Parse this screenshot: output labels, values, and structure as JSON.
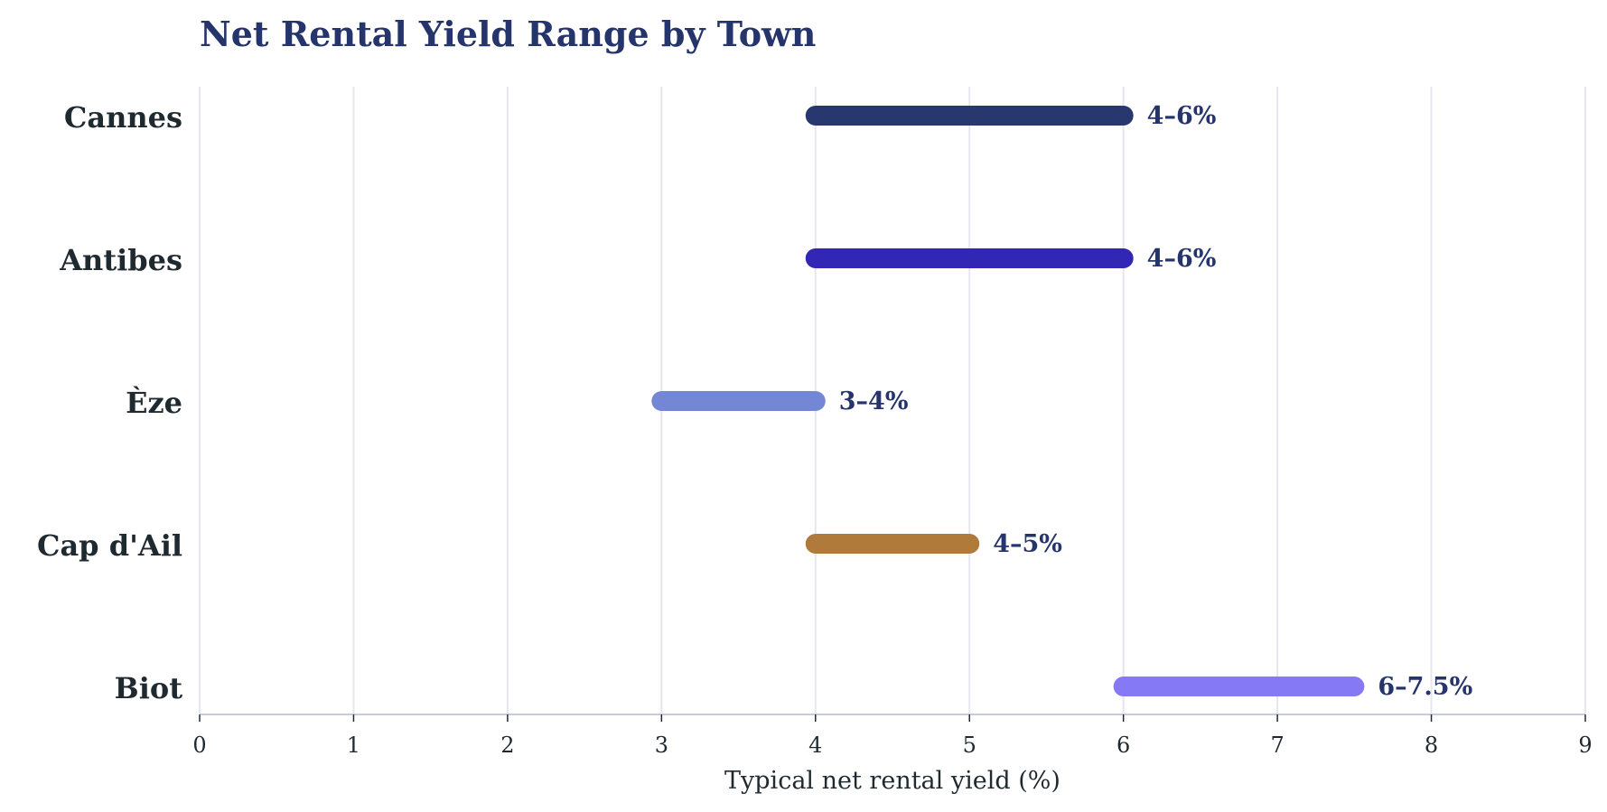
{
  "chart_data": {
    "type": "range-bar",
    "title": "Net Rental Yield Range by Town",
    "xlabel": "Typical net rental yield (%)",
    "ylabel": "",
    "xlim": [
      0,
      9
    ],
    "xticks": [
      0,
      1,
      2,
      3,
      4,
      5,
      6,
      7,
      8,
      9
    ],
    "grid": "vertical",
    "legend": "none",
    "series": [
      {
        "category": "Cannes",
        "min": 4,
        "max": 6,
        "label": "4–6%",
        "color": "#29376f"
      },
      {
        "category": "Antibes",
        "min": 4,
        "max": 6,
        "label": "4–6%",
        "color": "#3227b5"
      },
      {
        "category": "Èze",
        "min": 3,
        "max": 4,
        "label": "3–4%",
        "color": "#7487d6"
      },
      {
        "category": "Cap d'Ail",
        "min": 4,
        "max": 5,
        "label": "4–5%",
        "color": "#b07a3a"
      },
      {
        "category": "Biot",
        "min": 6,
        "max": 7.5,
        "label": "6–7.5%",
        "color": "#8679f6"
      }
    ]
  }
}
